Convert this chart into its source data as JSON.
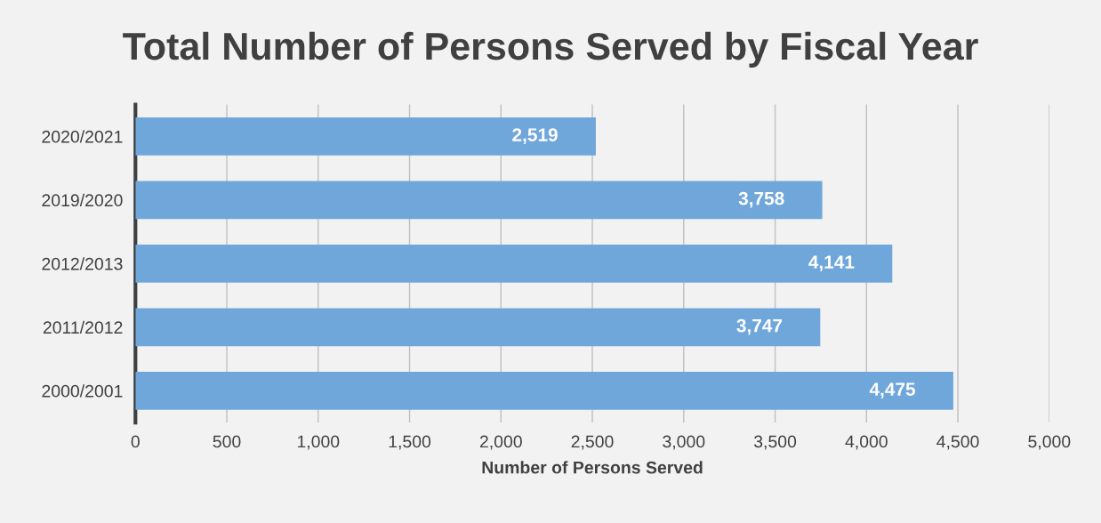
{
  "chart_data": {
    "type": "bar",
    "orientation": "horizontal",
    "title": "Total Number of Persons Served by Fiscal Year",
    "xlabel": "Number of Persons Served",
    "categories": [
      "2020/2021",
      "2019/2020",
      "2012/2013",
      "2011/2012",
      "2000/2001"
    ],
    "values": [
      2519,
      3758,
      4141,
      3747,
      4475
    ],
    "value_labels": [
      "2,519",
      "3,758",
      "4,141",
      "3,747",
      "4,475"
    ],
    "color": "#70a7da",
    "xlim": [
      0,
      5000
    ],
    "xticks": [
      0,
      {
        "value": 500,
        "label": "500"
      },
      {
        "value": 1000,
        "label": "1,000"
      },
      {
        "value": 1500,
        "label": "1,500"
      },
      {
        "value": 2000,
        "label": "2,000"
      },
      {
        "value": 2500,
        "label": "2,500"
      },
      {
        "value": 3000,
        "label": "3,000"
      },
      {
        "value": 3500,
        "label": "3,500"
      },
      {
        "value": 4000,
        "label": "4,000"
      },
      {
        "value": 4500,
        "label": "4,500"
      },
      {
        "value": 5000,
        "label": "5,000"
      }
    ],
    "grid": "x",
    "legend": false
  }
}
